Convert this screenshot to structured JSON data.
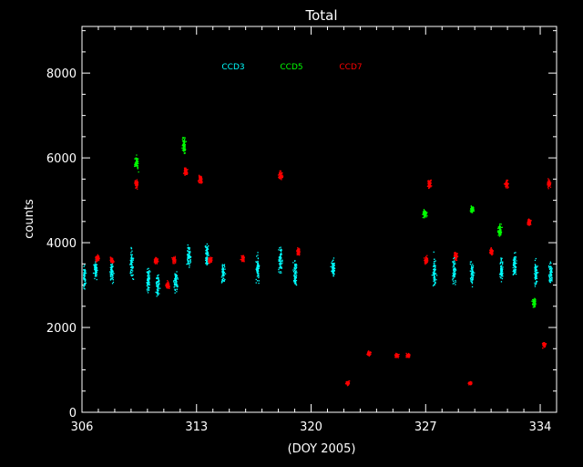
{
  "chart_data": {
    "type": "scatter",
    "title": "Total",
    "xlabel": "(DOY 2005)",
    "ylabel": "counts",
    "xlim": [
      306,
      335
    ],
    "ylim": [
      0,
      9100
    ],
    "x_ticks": [
      306,
      313,
      320,
      327,
      334
    ],
    "x_tick_labels": [
      "306",
      "313",
      "320",
      "327",
      "334"
    ],
    "y_ticks": [
      0,
      2000,
      4000,
      6000,
      8000
    ],
    "y_tick_labels": [
      "0",
      "2000",
      "4000",
      "6000",
      "8000"
    ],
    "legend_position": "top-center",
    "grid": false,
    "series": [
      {
        "name": "CCD3",
        "color": "#00ffff",
        "clusters": [
          {
            "x": 306.1,
            "y_center": 3200,
            "spread": 450
          },
          {
            "x": 306.8,
            "y_center": 3400,
            "spread": 350
          },
          {
            "x": 307.8,
            "y_center": 3300,
            "spread": 350
          },
          {
            "x": 309.0,
            "y_center": 3500,
            "spread": 600
          },
          {
            "x": 310.0,
            "y_center": 3100,
            "spread": 500
          },
          {
            "x": 310.6,
            "y_center": 3000,
            "spread": 450
          },
          {
            "x": 311.7,
            "y_center": 3100,
            "spread": 400
          },
          {
            "x": 312.5,
            "y_center": 3700,
            "spread": 500
          },
          {
            "x": 313.6,
            "y_center": 3700,
            "spread": 500
          },
          {
            "x": 314.6,
            "y_center": 3300,
            "spread": 400
          },
          {
            "x": 316.7,
            "y_center": 3400,
            "spread": 450
          },
          {
            "x": 318.1,
            "y_center": 3600,
            "spread": 500
          },
          {
            "x": 319.0,
            "y_center": 3300,
            "spread": 500
          },
          {
            "x": 321.3,
            "y_center": 3400,
            "spread": 350
          },
          {
            "x": 327.5,
            "y_center": 3300,
            "spread": 600
          },
          {
            "x": 328.7,
            "y_center": 3400,
            "spread": 600
          },
          {
            "x": 329.8,
            "y_center": 3300,
            "spread": 450
          },
          {
            "x": 331.6,
            "y_center": 3400,
            "spread": 500
          },
          {
            "x": 332.4,
            "y_center": 3500,
            "spread": 450
          },
          {
            "x": 333.7,
            "y_center": 3300,
            "spread": 500
          },
          {
            "x": 334.6,
            "y_center": 3300,
            "spread": 400
          }
        ]
      },
      {
        "name": "CCD5",
        "color": "#00ff00",
        "clusters": [
          {
            "x": 309.3,
            "y_center": 5900,
            "spread": 250
          },
          {
            "x": 312.2,
            "y_center": 6300,
            "spread": 300
          },
          {
            "x": 326.9,
            "y_center": 4700,
            "spread": 150
          },
          {
            "x": 331.5,
            "y_center": 4300,
            "spread": 200
          },
          {
            "x": 333.6,
            "y_center": 2600,
            "spread": 200
          },
          {
            "x": 329.8,
            "y_center": 4800,
            "spread": 150
          }
        ]
      },
      {
        "name": "CCD7",
        "color": "#ff0000",
        "clusters": [
          {
            "x": 306.9,
            "y_center": 3650,
            "spread": 120
          },
          {
            "x": 307.8,
            "y_center": 3600,
            "spread": 120
          },
          {
            "x": 309.3,
            "y_center": 5400,
            "spread": 150
          },
          {
            "x": 310.5,
            "y_center": 3600,
            "spread": 120
          },
          {
            "x": 311.2,
            "y_center": 3000,
            "spread": 150
          },
          {
            "x": 311.6,
            "y_center": 3600,
            "spread": 120
          },
          {
            "x": 312.3,
            "y_center": 5700,
            "spread": 150
          },
          {
            "x": 313.2,
            "y_center": 5500,
            "spread": 150
          },
          {
            "x": 313.8,
            "y_center": 3600,
            "spread": 120
          },
          {
            "x": 315.8,
            "y_center": 3650,
            "spread": 120
          },
          {
            "x": 318.1,
            "y_center": 5600,
            "spread": 150
          },
          {
            "x": 319.2,
            "y_center": 3800,
            "spread": 150
          },
          {
            "x": 322.2,
            "y_center": 700,
            "spread": 80
          },
          {
            "x": 323.5,
            "y_center": 1400,
            "spread": 80
          },
          {
            "x": 325.2,
            "y_center": 1350,
            "spread": 80
          },
          {
            "x": 325.9,
            "y_center": 1350,
            "spread": 80
          },
          {
            "x": 327.2,
            "y_center": 5400,
            "spread": 150
          },
          {
            "x": 327.0,
            "y_center": 3600,
            "spread": 150
          },
          {
            "x": 328.8,
            "y_center": 3700,
            "spread": 150
          },
          {
            "x": 329.7,
            "y_center": 700,
            "spread": 60
          },
          {
            "x": 331.0,
            "y_center": 3800,
            "spread": 150
          },
          {
            "x": 331.9,
            "y_center": 5400,
            "spread": 150
          },
          {
            "x": 333.3,
            "y_center": 4500,
            "spread": 120
          },
          {
            "x": 334.2,
            "y_center": 1600,
            "spread": 100
          },
          {
            "x": 334.5,
            "y_center": 5400,
            "spread": 150
          }
        ]
      }
    ]
  }
}
